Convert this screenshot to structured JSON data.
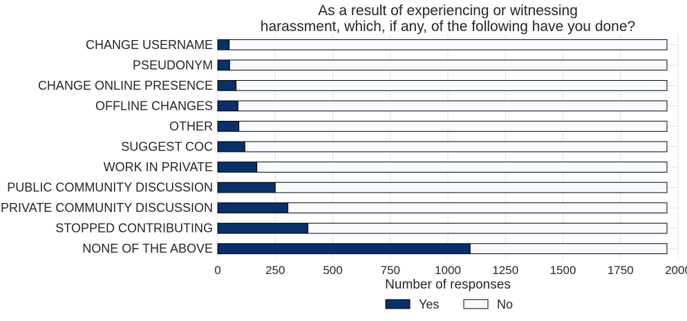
{
  "chart_data": {
    "type": "bar",
    "orientation": "horizontal",
    "stacked": true,
    "title_lines": [
      "As a result of experiencing or witnessing",
      "harassment, which, if any, of the following have you done?"
    ],
    "xlabel": "Number of responses",
    "ylabel": "",
    "xlim": [
      0,
      2000
    ],
    "xticks": [
      0,
      250,
      500,
      750,
      1000,
      1250,
      1500,
      1750,
      2000
    ],
    "grid": true,
    "legend_placement": "bottom-center",
    "categories": [
      "CHANGE USERNAME",
      "PSEUDONYM",
      "CHANGE ONLINE PRESENCE",
      "OFFLINE CHANGES",
      "OTHER",
      "SUGGEST COC",
      "WORK IN PRIVATE",
      "PUBLIC COMMUNITY DISCUSSION",
      "PRIVATE COMMUNITY DISCUSSION",
      "STOPPED CONTRIBUTING",
      "NONE OF THE ABOVE"
    ],
    "series": [
      {
        "name": "Yes",
        "color": "#08306b",
        "values": [
          50,
          52,
          80,
          88,
          92,
          118,
          170,
          250,
          305,
          392,
          1097
        ]
      },
      {
        "name": "No",
        "color": "#f7fbff",
        "values": [
          1902,
          1900,
          1872,
          1864,
          1860,
          1834,
          1782,
          1702,
          1647,
          1560,
          855
        ]
      }
    ]
  }
}
